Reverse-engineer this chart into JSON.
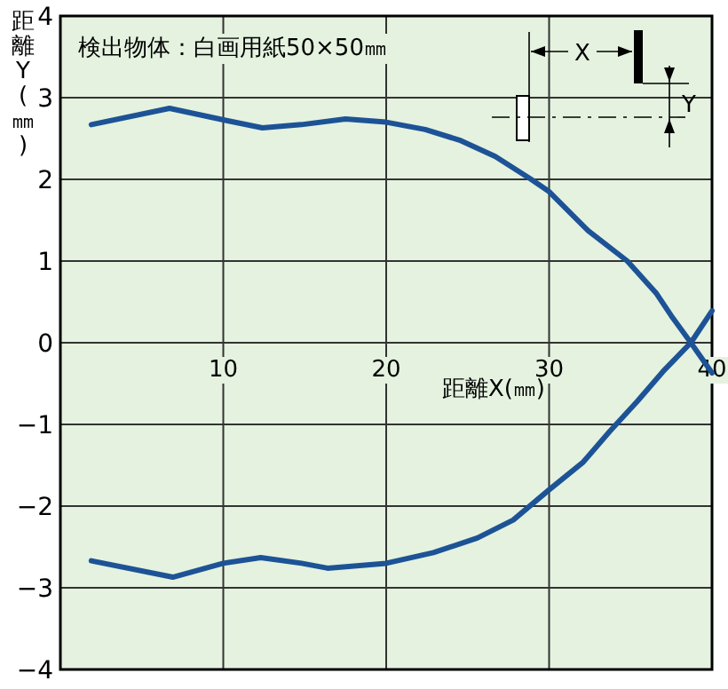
{
  "chart_data": {
    "type": "line",
    "title": "検出物体：白画用紙50×50㎜",
    "xlabel": "距離X(㎜)",
    "ylabel": "距離Y(㎜)",
    "annotations": [
      "X",
      "Y"
    ],
    "xlim": [
      0,
      40
    ],
    "ylim": [
      -4,
      4
    ],
    "xticks": [
      10,
      20,
      30,
      40
    ],
    "yticks": [
      -4,
      -3,
      -2,
      -1,
      0,
      1,
      2,
      3,
      4
    ],
    "grid": true,
    "marker": "none",
    "line_style": "solid",
    "series": [
      {
        "color": "#1d5396",
        "x": [
          1.9,
          6.7,
          10.2,
          12.4,
          14.8,
          17.5,
          20,
          22.4,
          24.5,
          26.7,
          28.9,
          30,
          32.4,
          34.8,
          36.6,
          37.5,
          38.7,
          40
        ],
        "values": [
          2.67,
          2.87,
          2.72,
          2.63,
          2.67,
          2.74,
          2.7,
          2.61,
          2.48,
          2.28,
          2.0,
          1.85,
          1.37,
          1.0,
          0.6,
          0.33,
          0,
          -0.37
        ]
      },
      {
        "color": "#1d5396",
        "x": [
          1.9,
          6.9,
          10,
          12.3,
          14.8,
          16.4,
          20,
          22.9,
          25.6,
          27.8,
          30,
          32.1,
          33.7,
          35.4,
          37,
          38.7,
          40
        ],
        "values": [
          -2.67,
          -2.87,
          -2.7,
          -2.63,
          -2.7,
          -2.76,
          -2.7,
          -2.57,
          -2.39,
          -2.17,
          -1.8,
          -1.46,
          -1.09,
          -0.72,
          -0.35,
          0,
          0.39
        ]
      }
    ]
  }
}
